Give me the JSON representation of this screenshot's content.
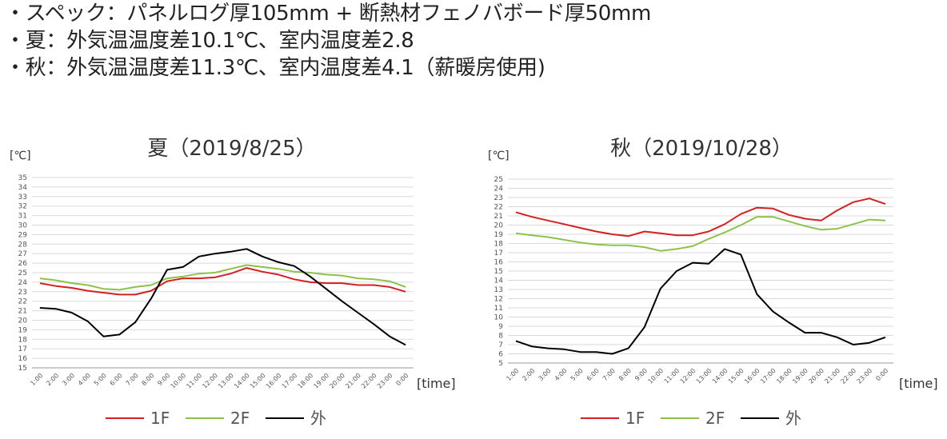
{
  "notes": [
    "・スペック：パネルログ厚105mm + 断熱材フェノバボード厚50mm",
    "・夏：外気温温度差10.1℃、室内温度差2.8",
    "・秋：外気温温度差11.3℃、室内温度差4.1（薪暖房使用)"
  ],
  "colors": {
    "1F": "#d42020",
    "2F": "#8dc24a",
    "outside": "#000000",
    "grid": "#d9d9d9",
    "axis": "#9a9a9a"
  },
  "chart_data": [
    {
      "type": "line",
      "title": "夏（2019/8/25）",
      "ylabel": "[℃]",
      "xlabel": "[time]",
      "ylim": [
        15,
        35
      ],
      "grid": true,
      "legend_position": "bottom",
      "x": [
        "1:00",
        "2:00",
        "3:00",
        "4:00",
        "5:00",
        "6:00",
        "7:00",
        "8:00",
        "9:00",
        "10:00",
        "11:00",
        "12:00",
        "13:00",
        "14:00",
        "15:00",
        "16:00",
        "17:00",
        "18:00",
        "19:00",
        "20:00",
        "21:00",
        "22:00",
        "23:00",
        "0:00"
      ],
      "series": [
        {
          "name": "1F",
          "values": [
            23.9,
            23.6,
            23.4,
            23.1,
            22.9,
            22.7,
            22.7,
            23.1,
            24.1,
            24.4,
            24.4,
            24.5,
            24.9,
            25.5,
            25.1,
            24.8,
            24.3,
            24.0,
            23.9,
            23.9,
            23.7,
            23.7,
            23.5,
            23.0
          ]
        },
        {
          "name": "2F",
          "values": [
            24.4,
            24.2,
            23.9,
            23.7,
            23.3,
            23.2,
            23.5,
            23.7,
            24.4,
            24.6,
            24.9,
            25.0,
            25.4,
            25.8,
            25.6,
            25.4,
            25.1,
            25.0,
            24.8,
            24.7,
            24.4,
            24.3,
            24.1,
            23.5
          ]
        },
        {
          "name": "外",
          "values": [
            21.3,
            21.2,
            20.8,
            19.9,
            18.3,
            18.5,
            19.8,
            22.3,
            25.3,
            25.6,
            26.7,
            27.0,
            27.2,
            27.5,
            26.7,
            26.1,
            25.7,
            24.6,
            23.3,
            22.0,
            20.8,
            19.6,
            18.3,
            17.4
          ]
        }
      ]
    },
    {
      "type": "line",
      "title": "秋（2019/10/28）",
      "ylabel": "[℃]",
      "xlabel": "[time]",
      "ylim": [
        5,
        25
      ],
      "grid": true,
      "legend_position": "bottom",
      "x": [
        "1:00",
        "2:00",
        "3:00",
        "4:00",
        "5:00",
        "6:00",
        "7:00",
        "8:00",
        "9:00",
        "10:00",
        "11:00",
        "12:00",
        "13:00",
        "14:00",
        "15:00",
        "16:00",
        "17:00",
        "18:00",
        "19:00",
        "20:00",
        "21:00",
        "22:00",
        "23:00",
        "0:00"
      ],
      "series": [
        {
          "name": "1F",
          "values": [
            21.4,
            20.9,
            20.5,
            20.1,
            19.7,
            19.3,
            19.0,
            18.8,
            19.3,
            19.1,
            18.9,
            18.9,
            19.3,
            20.1,
            21.2,
            21.9,
            21.8,
            21.1,
            20.7,
            20.5,
            21.6,
            22.5,
            22.9,
            22.3
          ]
        },
        {
          "name": "2F",
          "values": [
            19.1,
            18.9,
            18.7,
            18.4,
            18.1,
            17.9,
            17.8,
            17.8,
            17.6,
            17.2,
            17.4,
            17.7,
            18.5,
            19.2,
            20.0,
            20.9,
            20.9,
            20.4,
            19.9,
            19.5,
            19.6,
            20.1,
            20.6,
            20.5
          ]
        },
        {
          "name": "外",
          "values": [
            7.4,
            6.8,
            6.6,
            6.5,
            6.2,
            6.2,
            6.0,
            6.6,
            8.9,
            13.1,
            15.0,
            15.9,
            15.8,
            17.4,
            16.8,
            12.5,
            10.6,
            9.4,
            8.3,
            8.3,
            7.8,
            7.0,
            7.2,
            7.8
          ]
        }
      ]
    }
  ]
}
